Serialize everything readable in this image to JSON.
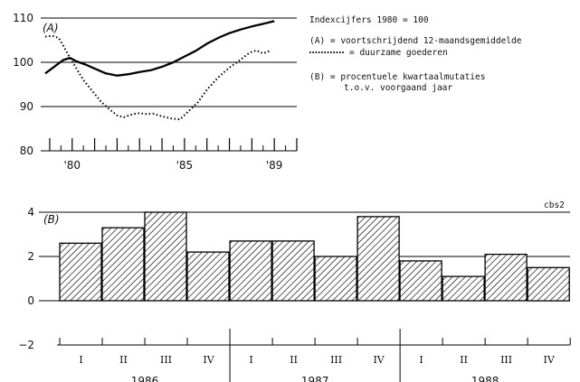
{
  "source_tag": "cbs2",
  "legend": {
    "title": "Indexcijfers 1980 = 100",
    "a_label": "(A)  = voortschrijdend 12-maandsgemiddelde",
    "dotted_label": "= duurzame goederen",
    "b_label_1": "(B)  = procentuele kwartaalmutaties",
    "b_label_2": "t.o.v. voorgaand jaar"
  },
  "chart_data": [
    {
      "type": "line",
      "panel_label": "(A)",
      "ylim": [
        80,
        110
      ],
      "yticks": [
        80,
        90,
        100,
        110
      ],
      "xlim": [
        1978.6,
        1990.0
      ],
      "xtick_labels": [
        "'80",
        "'85",
        "'89"
      ],
      "xtick_label_years": [
        1980,
        1985,
        1989
      ],
      "series": [
        {
          "style": "solid",
          "x": [
            1978.8,
            1979.2,
            1979.6,
            1979.9,
            1980.2,
            1980.6,
            1981.0,
            1981.5,
            1982.0,
            1982.5,
            1983.0,
            1983.5,
            1984.0,
            1984.5,
            1985.0,
            1985.5,
            1986.0,
            1986.5,
            1987.0,
            1987.5,
            1988.0,
            1988.5,
            1989.0
          ],
          "y": [
            97.5,
            99.0,
            100.5,
            101.0,
            100.2,
            99.5,
            98.6,
            97.5,
            97.0,
            97.3,
            97.8,
            98.2,
            99.0,
            100.0,
            101.3,
            102.6,
            104.2,
            105.5,
            106.6,
            107.4,
            108.1,
            108.7,
            109.3
          ]
        },
        {
          "style": "dotted",
          "name": "duurzame goederen",
          "x": [
            1978.8,
            1979.1,
            1979.4,
            1979.6,
            1979.9,
            1980.2,
            1980.5,
            1980.9,
            1981.3,
            1981.7,
            1982.0,
            1982.3,
            1982.7,
            1983.0,
            1983.3,
            1983.6,
            1984.0,
            1984.4,
            1984.8,
            1985.2,
            1985.6,
            1986.0,
            1986.5,
            1987.0,
            1987.5,
            1987.9,
            1988.2,
            1988.5,
            1988.8
          ],
          "y": [
            105.8,
            106.0,
            105.5,
            103.8,
            101.0,
            98.5,
            96.0,
            93.5,
            91.0,
            89.2,
            88.0,
            87.6,
            88.3,
            88.5,
            88.3,
            88.4,
            87.8,
            87.3,
            87.1,
            89.0,
            91.0,
            93.8,
            96.6,
            98.8,
            100.6,
            102.2,
            102.7,
            102.0,
            102.6
          ]
        }
      ]
    },
    {
      "type": "bar",
      "panel_label": "(B)",
      "ylim": [
        -2,
        4
      ],
      "yticks": [
        -2,
        0,
        2,
        4
      ],
      "categories": [
        "I",
        "II",
        "III",
        "IV",
        "I",
        "II",
        "III",
        "IV",
        "I",
        "II",
        "III",
        "IV"
      ],
      "groups": [
        "1986",
        "1987",
        "1988"
      ],
      "values": [
        2.6,
        3.3,
        4.0,
        2.2,
        2.7,
        2.7,
        2.0,
        3.8,
        1.8,
        1.1,
        2.1,
        1.5
      ]
    }
  ]
}
